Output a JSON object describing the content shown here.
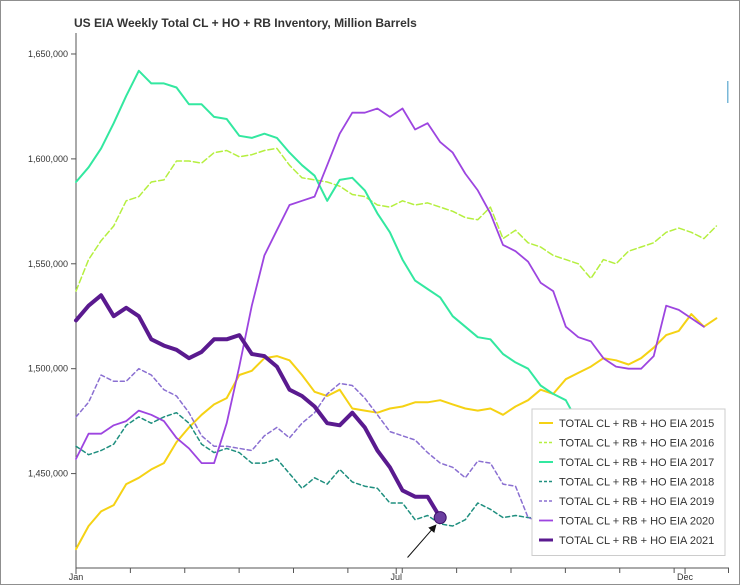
{
  "chart_data": {
    "type": "line",
    "title": "US EIA Weekly Total CL + HO + RB Inventory, Million Barrels",
    "xlabel": "",
    "ylabel": "",
    "ylim": [
      1405000,
      1660000
    ],
    "xlim": [
      0,
      52
    ],
    "y_ticks": [
      {
        "value": 1450000,
        "label": "1,450,000"
      },
      {
        "value": 1500000,
        "label": "1,500,000"
      },
      {
        "value": 1550000,
        "label": "1,550,000"
      },
      {
        "value": 1600000,
        "label": "1,600,000"
      },
      {
        "value": 1650000,
        "label": "1,650,000"
      }
    ],
    "x_ticks": [
      {
        "value": 0,
        "label": "Jan"
      },
      {
        "value": 25.5,
        "label": "Jul"
      },
      {
        "value": 48.5,
        "label": "Dec"
      }
    ],
    "grid": false,
    "legend_position": "bottom-right",
    "series": [
      {
        "name": "TOTAL CL + RB + HO EIA 2015",
        "color": "#f5d214",
        "dash": "solid",
        "width": 2,
        "values": [
          1414000,
          1425000,
          1432000,
          1435000,
          1445000,
          1448000,
          1452000,
          1455000,
          1465000,
          1472000,
          1478000,
          1483000,
          1486000,
          1497000,
          1499000,
          1505000,
          1506000,
          1504000,
          1497000,
          1489000,
          1487000,
          1490000,
          1481000,
          1480000,
          1479000,
          1481000,
          1482000,
          1484000,
          1484000,
          1485000,
          1483000,
          1481000,
          1480000,
          1481000,
          1478000,
          1482000,
          1485000,
          1490000,
          1488000,
          1495000,
          1498000,
          1501000,
          1505000,
          1504000,
          1502000,
          1505000,
          1510000,
          1516000,
          1518000,
          1526000,
          1520000,
          1524000
        ]
      },
      {
        "name": "TOTAL CL + RB + HO EIA 2016",
        "color": "#b5ef3f",
        "dash": "6,3",
        "width": 1.5,
        "values": [
          1537000,
          1552000,
          1561000,
          1568000,
          1580000,
          1582000,
          1589000,
          1590000,
          1599000,
          1599000,
          1598000,
          1603000,
          1604000,
          1601000,
          1602000,
          1604000,
          1605000,
          1597000,
          1591000,
          1590000,
          1589000,
          1587000,
          1583000,
          1582000,
          1578000,
          1577000,
          1580000,
          1578000,
          1579000,
          1577000,
          1575000,
          1572000,
          1571000,
          1577000,
          1562000,
          1566000,
          1560000,
          1558000,
          1554000,
          1552000,
          1550000,
          1543000,
          1552000,
          1550000,
          1556000,
          1558000,
          1560000,
          1565000,
          1567000,
          1565000,
          1562000,
          1568000
        ]
      },
      {
        "name": "TOTAL CL + RB + HO EIA 2017",
        "color": "#33e8a0",
        "dash": "solid",
        "width": 2,
        "values": [
          1589000,
          1596000,
          1605000,
          1617000,
          1630000,
          1642000,
          1636000,
          1636000,
          1634000,
          1626000,
          1626000,
          1620000,
          1619000,
          1611000,
          1610000,
          1612000,
          1610000,
          1603000,
          1597000,
          1592000,
          1580000,
          1590000,
          1591000,
          1585000,
          1574000,
          1565000,
          1552000,
          1542000,
          1538000,
          1534000,
          1525000,
          1520000,
          1515000,
          1514000,
          1507000,
          1503000,
          1500000,
          1492000,
          1488000,
          1485000,
          1474000
        ]
      },
      {
        "name": "TOTAL CL + RB + HO EIA 2018",
        "color": "#1f8f7f",
        "dash": "4,3",
        "width": 1.5,
        "values": [
          1463000,
          1459000,
          1461000,
          1464000,
          1473000,
          1477000,
          1474000,
          1477000,
          1479000,
          1474000,
          1464000,
          1460000,
          1462000,
          1460000,
          1455000,
          1455000,
          1457000,
          1450000,
          1443000,
          1448000,
          1445000,
          1452000,
          1446000,
          1444000,
          1443000,
          1436000,
          1436000,
          1428000,
          1430000,
          1426000,
          1425000,
          1428000,
          1436000,
          1433000,
          1429000,
          1430000,
          1429000,
          1429000,
          1425000
        ]
      },
      {
        "name": "TOTAL CL + RB + HO EIA 2019",
        "color": "#8a6fd1",
        "dash": "4,3",
        "width": 1.5,
        "values": [
          1477000,
          1484000,
          1497000,
          1494000,
          1494000,
          1500000,
          1497000,
          1490000,
          1487000,
          1479000,
          1468000,
          1463000,
          1463000,
          1462000,
          1461000,
          1468000,
          1472000,
          1467000,
          1474000,
          1479000,
          1488000,
          1493000,
          1492000,
          1486000,
          1478000,
          1470000,
          1468000,
          1466000,
          1460000,
          1455000,
          1453000,
          1448000,
          1456000,
          1455000,
          1445000,
          1444000,
          1429000,
          1427000,
          1429000
        ]
      },
      {
        "name": "TOTAL CL + RB + HO EIA 2020",
        "color": "#9d45e0",
        "dash": "solid",
        "width": 1.8,
        "values": [
          1457000,
          1469000,
          1469000,
          1473000,
          1475000,
          1480000,
          1478000,
          1475000,
          1467000,
          1462000,
          1455000,
          1455000,
          1474000,
          1501000,
          1530000,
          1554000,
          1566000,
          1578000,
          1580000,
          1582000,
          1597000,
          1612000,
          1622000,
          1622000,
          1624000,
          1620000,
          1624000,
          1614000,
          1617000,
          1608000,
          1603000,
          1593000,
          1585000,
          1574000,
          1559000,
          1556000,
          1551000,
          1541000,
          1537000,
          1520000,
          1515000,
          1513000,
          1505000,
          1501000,
          1500000,
          1500000,
          1506000,
          1530000,
          1528000,
          1524000,
          1520000
        ]
      },
      {
        "name": "TOTAL CL + RB + HO EIA 2021",
        "color": "#5a1a8f",
        "dash": "solid",
        "width": 4,
        "values": [
          1523000,
          1530000,
          1535000,
          1525000,
          1529000,
          1525000,
          1514000,
          1511000,
          1509000,
          1505000,
          1508000,
          1514000,
          1514000,
          1516000,
          1507000,
          1506000,
          1501000,
          1490000,
          1487000,
          1482000,
          1474000,
          1473000,
          1479000,
          1472000,
          1461000,
          1453000,
          1442000,
          1439000,
          1439000,
          1429000
        ]
      }
    ],
    "annotations": [
      {
        "type": "marker",
        "series_index": 6,
        "x": 29,
        "y": 1429000,
        "fill": "#6b3fa0"
      },
      {
        "type": "arrow",
        "from": [
          26.4,
          1410000
        ],
        "to": [
          29,
          1427000
        ]
      }
    ]
  }
}
